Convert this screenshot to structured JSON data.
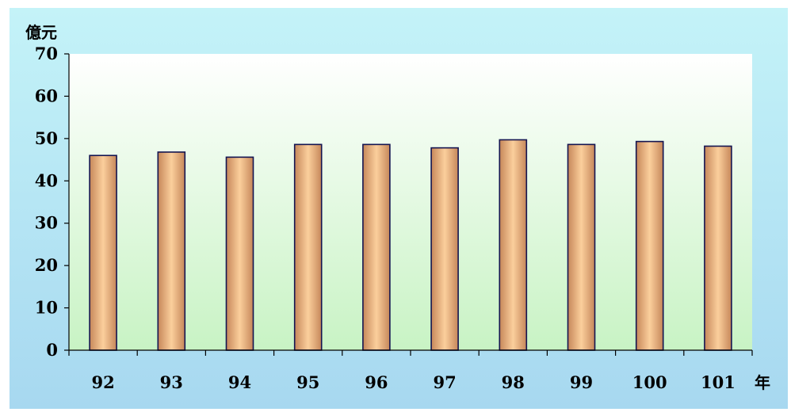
{
  "chart_data": {
    "type": "bar",
    "title": "",
    "ylabel": "億元",
    "xlabel": "年",
    "categories": [
      "92",
      "93",
      "94",
      "95",
      "96",
      "97",
      "98",
      "99",
      "100",
      "101"
    ],
    "values": [
      46.0,
      46.8,
      45.6,
      48.6,
      48.6,
      47.8,
      49.7,
      48.6,
      49.3,
      48.2
    ],
    "ylim": [
      0,
      70
    ],
    "yticks": [
      "0",
      "10",
      "20",
      "30",
      "40",
      "50",
      "60",
      "70"
    ],
    "grid": false,
    "legend": "none"
  },
  "colors": {
    "outer_background_top": "#c4f3f8",
    "outer_background_bottom": "#a7d8f0",
    "plot_background_top": "#ffffff",
    "plot_background_bottom": "#c8f3c4",
    "bar_center": "#fbcf9c",
    "bar_edge": "#c6875a",
    "bar_outline": "#141450",
    "axis": "#000000"
  }
}
